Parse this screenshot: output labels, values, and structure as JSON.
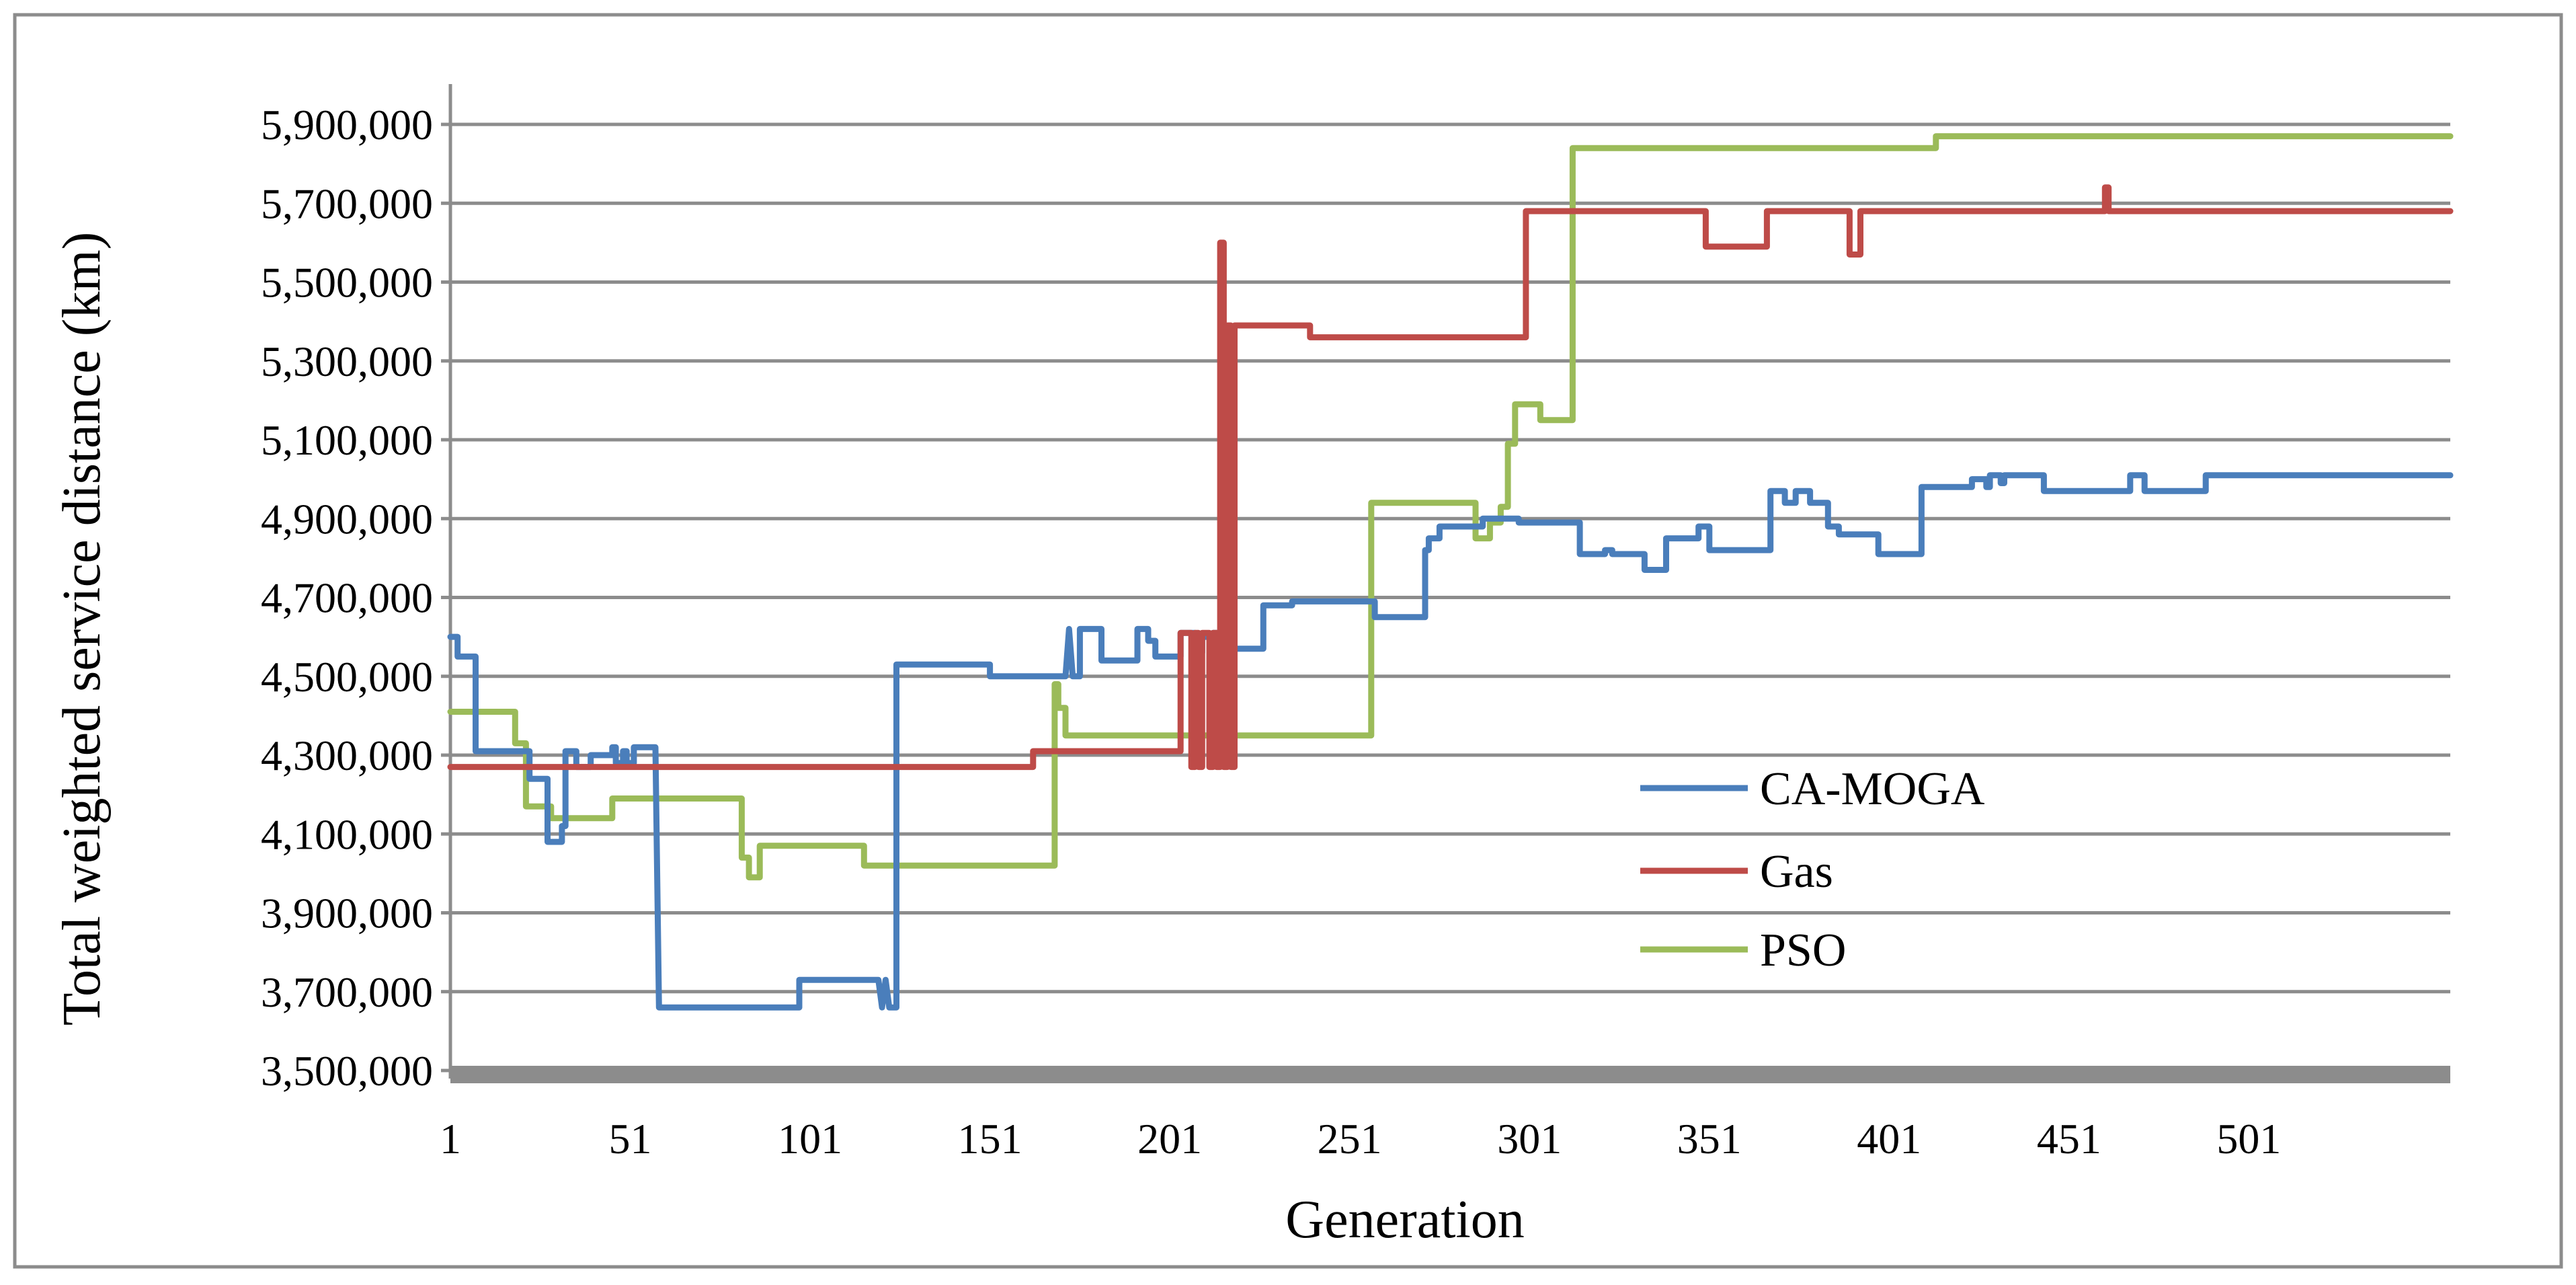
{
  "chart_data": {
    "type": "line",
    "title": "",
    "xlabel": "Generation",
    "ylabel": "Total weighted service distance (km)",
    "xlim": [
      1,
      557
    ],
    "ylim": [
      3500000,
      5900000
    ],
    "ytick_values": [
      3500000,
      3700000,
      3900000,
      4100000,
      4300000,
      4500000,
      4700000,
      4900000,
      5100000,
      5300000,
      5500000,
      5700000,
      5900000
    ],
    "ytick_labels": [
      "3,500,000",
      "3,700,000",
      "3,900,000",
      "4,100,000",
      "4,300,000",
      "4,500,000",
      "4,700,000",
      "4,900,000",
      "5,100,000",
      "5,300,000",
      "5,500,000",
      "5,700,000",
      "5,900,000"
    ],
    "xtick_values": [
      1,
      51,
      101,
      151,
      201,
      251,
      301,
      351,
      401,
      451,
      501
    ],
    "xtick_labels": [
      "1",
      "51",
      "101",
      "151",
      "201",
      "251",
      "301",
      "351",
      "401",
      "451",
      "501"
    ],
    "grid": "horizontal",
    "legend": "right",
    "series": [
      {
        "name": "CA-MOGA",
        "color": "#4a7ebb",
        "x": [
          1,
          3,
          3,
          8,
          8,
          23,
          23,
          28,
          28,
          32,
          32,
          33,
          33,
          36,
          36,
          40,
          40,
          46,
          46,
          47,
          47,
          49,
          49,
          50,
          50,
          52,
          52,
          58,
          59,
          59,
          98,
          98,
          120,
          121,
          122,
          123,
          124,
          125,
          125,
          150,
          151,
          151,
          172,
          173,
          174,
          174,
          176,
          176,
          182,
          182,
          192,
          192,
          195,
          195,
          197,
          197,
          204,
          204,
          208,
          208,
          210,
          210,
          212,
          212,
          213,
          213,
          216,
          216,
          220,
          220,
          227,
          227,
          235,
          235,
          258,
          258,
          272,
          272,
          273,
          273,
          276,
          276,
          288,
          288,
          298,
          298,
          315,
          315,
          322,
          322,
          324,
          324,
          333,
          333,
          339,
          339,
          348,
          348,
          351,
          351,
          368,
          368,
          372,
          372,
          375,
          375,
          379,
          379,
          384,
          384,
          387,
          387,
          398,
          398,
          410,
          410,
          424,
          424,
          428,
          428,
          429,
          429,
          432,
          432,
          433,
          433,
          444,
          444,
          468,
          468,
          472,
          472,
          489,
          489,
          557
        ],
        "y": [
          4600000,
          4600000,
          4550000,
          4550000,
          4310000,
          4310000,
          4240000,
          4240000,
          4080000,
          4080000,
          4120000,
          4120000,
          4310000,
          4310000,
          4270000,
          4270000,
          4300000,
          4300000,
          4320000,
          4320000,
          4280000,
          4280000,
          4310000,
          4310000,
          4280000,
          4280000,
          4320000,
          4320000,
          3660000,
          3660000,
          3660000,
          3730000,
          3730000,
          3660000,
          3730000,
          3660000,
          3660000,
          3660000,
          4530000,
          4530000,
          4530000,
          4500000,
          4500000,
          4620000,
          4500000,
          4500000,
          4500000,
          4620000,
          4620000,
          4540000,
          4540000,
          4620000,
          4620000,
          4590000,
          4590000,
          4550000,
          4550000,
          4610000,
          4610000,
          4560000,
          4560000,
          4600000,
          4600000,
          4550000,
          4550000,
          4610000,
          4610000,
          4570000,
          4570000,
          4570000,
          4570000,
          4680000,
          4680000,
          4690000,
          4690000,
          4650000,
          4650000,
          4820000,
          4820000,
          4850000,
          4850000,
          4880000,
          4880000,
          4900000,
          4900000,
          4890000,
          4890000,
          4810000,
          4810000,
          4820000,
          4820000,
          4810000,
          4810000,
          4770000,
          4770000,
          4850000,
          4850000,
          4880000,
          4880000,
          4820000,
          4820000,
          4970000,
          4970000,
          4940000,
          4940000,
          4970000,
          4970000,
          4940000,
          4940000,
          4880000,
          4880000,
          4860000,
          4860000,
          4810000,
          4810000,
          4980000,
          4980000,
          5000000,
          5000000,
          4980000,
          4980000,
          5010000,
          5010000,
          4990000,
          4990000,
          5010000,
          5010000,
          4970000,
          4970000,
          5010000,
          5010000,
          4970000,
          4970000,
          5010000,
          5010000
        ]
      },
      {
        "name": "Gas",
        "color": "#be4b48",
        "x": [
          1,
          163,
          163,
          166,
          166,
          204,
          204,
          207,
          207,
          208,
          208,
          209,
          209,
          210,
          210,
          212,
          212,
          213,
          213,
          214,
          214,
          215,
          215,
          216,
          216,
          217,
          217,
          218,
          218,
          219,
          219,
          220,
          220,
          240,
          240,
          300,
          300,
          350,
          350,
          367,
          367,
          390,
          390,
          393,
          393,
          461,
          461,
          462,
          462,
          557
        ],
        "y": [
          4270000,
          4270000,
          4310000,
          4310000,
          4310000,
          4310000,
          4610000,
          4610000,
          4270000,
          4270000,
          4610000,
          4610000,
          4270000,
          4270000,
          4610000,
          4610000,
          4270000,
          4270000,
          4610000,
          4610000,
          4270000,
          4270000,
          5600000,
          5600000,
          4270000,
          4270000,
          5390000,
          5390000,
          4270000,
          4270000,
          5390000,
          5390000,
          5390000,
          5390000,
          5360000,
          5360000,
          5680000,
          5680000,
          5590000,
          5590000,
          5680000,
          5680000,
          5570000,
          5570000,
          5680000,
          5680000,
          5740000,
          5740000,
          5680000,
          5680000
        ]
      },
      {
        "name": "PSO",
        "color": "#9bbb59",
        "x": [
          1,
          19,
          19,
          22,
          22,
          29,
          29,
          46,
          46,
          82,
          82,
          84,
          84,
          87,
          87,
          116,
          116,
          120,
          120,
          169,
          169,
          170,
          170,
          172,
          172,
          173,
          173,
          257,
          257,
          286,
          286,
          290,
          290,
          293,
          293,
          295,
          295,
          297,
          297,
          298,
          298,
          304,
          304,
          313,
          313,
          315,
          315,
          414,
          414,
          557
        ],
        "y": [
          4410000,
          4410000,
          4330000,
          4330000,
          4170000,
          4170000,
          4140000,
          4140000,
          4190000,
          4190000,
          4040000,
          4040000,
          3990000,
          3990000,
          4070000,
          4070000,
          4020000,
          4020000,
          4020000,
          4020000,
          4480000,
          4480000,
          4420000,
          4420000,
          4350000,
          4350000,
          4350000,
          4350000,
          4940000,
          4940000,
          4850000,
          4850000,
          4890000,
          4890000,
          4930000,
          4930000,
          5090000,
          5090000,
          5190000,
          5190000,
          5190000,
          5190000,
          5150000,
          5150000,
          5840000,
          5840000,
          5840000,
          5840000,
          5870000,
          5870000
        ]
      }
    ]
  }
}
